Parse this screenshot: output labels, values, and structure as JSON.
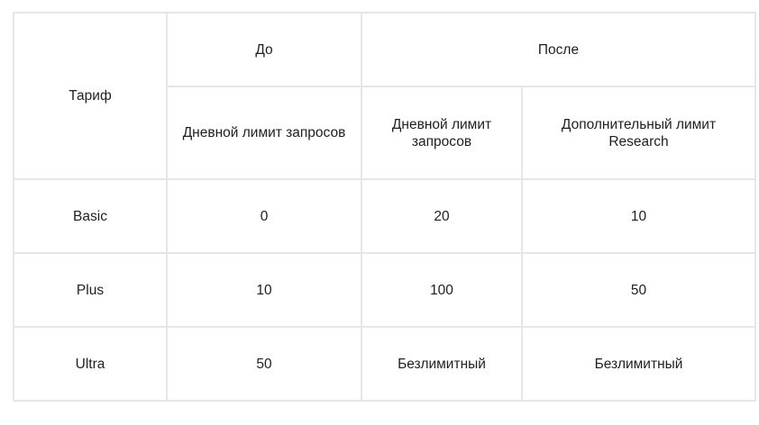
{
  "table": {
    "header": {
      "tariff": "Тариф",
      "before": "До",
      "after": "После",
      "before_daily": "Дневной лимит запросов",
      "after_daily": "Дневной лимит запросов",
      "after_research": "Дополнительный лимит Research"
    },
    "rows": [
      {
        "tariff": "Basic",
        "before_daily": "0",
        "after_daily": "20",
        "after_research": "10"
      },
      {
        "tariff": "Plus",
        "before_daily": "10",
        "after_daily": "100",
        "after_research": "50"
      },
      {
        "tariff": "Ultra",
        "before_daily": "50",
        "after_daily": "Безлимитный",
        "after_research": "Безлимитный"
      }
    ]
  }
}
